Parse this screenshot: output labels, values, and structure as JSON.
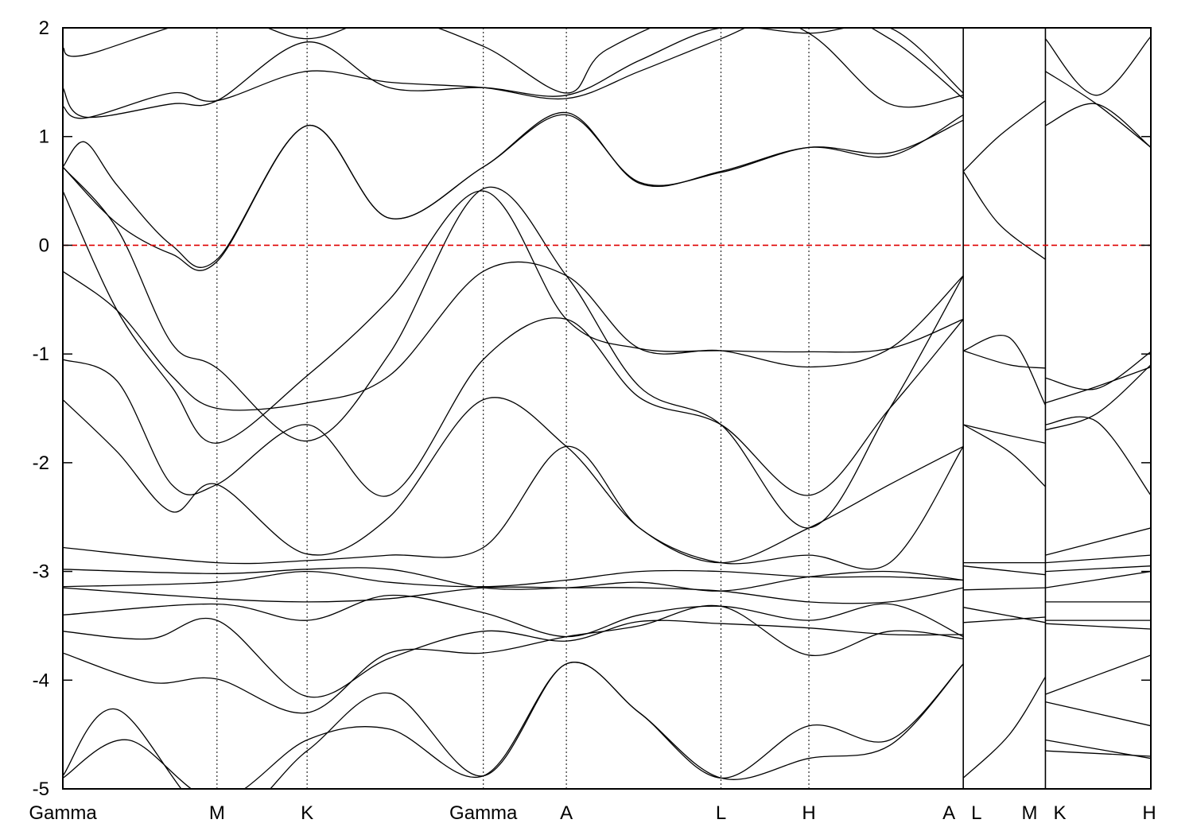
{
  "chart_data": {
    "type": "line",
    "title": "",
    "xlabel": "",
    "ylabel": "",
    "ylim": [
      -5,
      2
    ],
    "yticks": [
      2,
      1,
      0,
      -1,
      -2,
      -3,
      -4,
      -5
    ],
    "ytick_labels": [
      "2",
      "1",
      "0",
      "-1",
      "-2",
      "-3",
      "-4",
      "-5"
    ],
    "xlim": [
      0,
      1
    ],
    "kpoint_labels": [
      "Gamma",
      "M",
      "K",
      "Gamma",
      "A",
      "L",
      "H",
      "A",
      "L",
      "M",
      "K",
      "H"
    ],
    "kpoint_x": [
      0,
      0.1417,
      0.2245,
      0.3865,
      0.4628,
      0.6049,
      0.6857,
      0.8276,
      0.8276,
      0.9031,
      0.9031,
      1.0
    ],
    "vertical_lines_x": [
      0.1417,
      0.2245,
      0.3865,
      0.4628,
      0.6049,
      0.6857,
      0.8276,
      0.9031
    ],
    "segment_breaks_x": [
      0.8276,
      0.9031
    ],
    "fermi_level": 0,
    "colors": {
      "bands": "#000000",
      "fermi_line": "#e00000",
      "frame": "#000000"
    },
    "series": [
      {
        "x": [
          0,
          0.06,
          0.1417,
          0.2245,
          0.3,
          0.3865,
          0.4628,
          0.53,
          0.6049,
          0.6857,
          0.76,
          0.8276
        ],
        "values": [
          -4.9,
          -4.55,
          -5.1,
          -4.55,
          -4.45,
          -4.88,
          -3.85,
          -4.3,
          -4.9,
          -4.72,
          -4.6,
          -3.85
        ]
      },
      {
        "x": [
          0,
          0.05,
          0.1417,
          0.2245,
          0.3,
          0.3865,
          0.4628,
          0.53,
          0.6049,
          0.6857,
          0.76,
          0.8276
        ],
        "values": [
          -4.88,
          -4.27,
          -5.3,
          -4.65,
          -4.12,
          -4.88,
          -3.85,
          -4.3,
          -4.9,
          -4.42,
          -4.55,
          -3.85
        ]
      },
      {
        "x": [
          0,
          0.08,
          0.1417,
          0.2245,
          0.3,
          0.3865,
          0.4628,
          0.53,
          0.6049,
          0.6857,
          0.76,
          0.8276
        ],
        "values": [
          -3.75,
          -4.02,
          -3.99,
          -4.3,
          -3.75,
          -3.75,
          -3.6,
          -3.5,
          -3.32,
          -3.77,
          -3.55,
          -3.62
        ]
      },
      {
        "x": [
          0,
          0.08,
          0.1417,
          0.2245,
          0.3,
          0.3865,
          0.4628,
          0.53,
          0.6049,
          0.6857,
          0.76,
          0.8276
        ],
        "values": [
          -3.55,
          -3.62,
          -3.45,
          -4.15,
          -3.8,
          -3.55,
          -3.64,
          -3.46,
          -3.48,
          -3.52,
          -3.58,
          -3.58
        ]
      },
      {
        "x": [
          0,
          0.1417,
          0.2245,
          0.3,
          0.3865,
          0.4628,
          0.53,
          0.6049,
          0.6857,
          0.76,
          0.8276
        ],
        "values": [
          -3.4,
          -3.3,
          -3.45,
          -3.22,
          -3.38,
          -3.6,
          -3.4,
          -3.32,
          -3.45,
          -3.3,
          -3.6
        ]
      },
      {
        "x": [
          0,
          0.1417,
          0.2245,
          0.3,
          0.3865,
          0.4628,
          0.53,
          0.6049,
          0.6857,
          0.76,
          0.8276
        ],
        "values": [
          -3.15,
          -3.25,
          -3.28,
          -3.25,
          -3.15,
          -3.15,
          -3.15,
          -3.18,
          -3.28,
          -3.28,
          -3.15
        ]
      },
      {
        "x": [
          0,
          0.1417,
          0.2245,
          0.3,
          0.3865,
          0.4628,
          0.53,
          0.6049,
          0.6857,
          0.76,
          0.8276
        ],
        "values": [
          -3.14,
          -3.1,
          -3.0,
          -3.1,
          -3.14,
          -3.08,
          -3.0,
          -3.0,
          -3.05,
          -3.05,
          -3.08
        ]
      },
      {
        "x": [
          0,
          0.1417,
          0.2245,
          0.3,
          0.3865,
          0.4628,
          0.53,
          0.6049,
          0.6857,
          0.76,
          0.8276
        ],
        "values": [
          -2.98,
          -3.02,
          -2.98,
          -2.98,
          -3.15,
          -3.15,
          -3.1,
          -3.18,
          -3.05,
          -3.0,
          -3.08
        ]
      },
      {
        "x": [
          0,
          0.1417,
          0.2245,
          0.3,
          0.3865,
          0.4628,
          0.53,
          0.6049,
          0.6857,
          0.76,
          0.8276
        ],
        "values": [
          -2.78,
          -2.92,
          -2.9,
          -2.85,
          -2.78,
          -1.85,
          -2.6,
          -2.92,
          -2.85,
          -2.92,
          -1.85
        ]
      },
      {
        "x": [
          0,
          0.05,
          0.1,
          0.1417,
          0.2245,
          0.3,
          0.3865,
          0.4628,
          0.53,
          0.6049,
          0.6857,
          0.76,
          0.8276
        ],
        "values": [
          -1.42,
          -1.9,
          -2.45,
          -2.2,
          -2.84,
          -2.5,
          -1.42,
          -1.85,
          -2.6,
          -2.92,
          -2.6,
          -2.2,
          -1.85
        ]
      },
      {
        "x": [
          0,
          0.05,
          0.1,
          0.1417,
          0.2245,
          0.3,
          0.3865,
          0.4628,
          0.53,
          0.6049,
          0.6857,
          0.76,
          0.8276
        ],
        "values": [
          -1.05,
          -1.25,
          -2.2,
          -2.2,
          -1.65,
          -2.3,
          -1.05,
          -0.68,
          -1.4,
          -1.65,
          -2.3,
          -1.5,
          -0.68
        ]
      },
      {
        "x": [
          0,
          0.05,
          0.1,
          0.1417,
          0.2245,
          0.3,
          0.3865,
          0.4628,
          0.53,
          0.6049,
          0.6857,
          0.76,
          0.8276
        ],
        "values": [
          -0.24,
          -0.6,
          -1.2,
          -1.5,
          -1.45,
          -1.2,
          -0.24,
          -0.28,
          -0.95,
          -0.97,
          -1.12,
          -0.95,
          -0.28
        ]
      },
      {
        "x": [
          0,
          0.05,
          0.1,
          0.1417,
          0.2245,
          0.3,
          0.3865,
          0.4628,
          0.53,
          0.6049,
          0.6857,
          0.76,
          0.8276
        ],
        "values": [
          0.5,
          -0.6,
          -1.3,
          -1.82,
          -1.2,
          -0.5,
          0.5,
          -0.68,
          -0.95,
          -0.97,
          -0.98,
          -0.95,
          -0.68
        ]
      },
      {
        "x": [
          0,
          0.05,
          0.1,
          0.1417,
          0.2245,
          0.3,
          0.3865,
          0.4628,
          0.53,
          0.6049,
          0.6857,
          0.76,
          0.8276
        ],
        "values": [
          0.72,
          0.15,
          -0.9,
          -1.13,
          -1.8,
          -1.0,
          0.52,
          -0.28,
          -1.3,
          -1.65,
          -2.6,
          -1.5,
          -0.28
        ]
      },
      {
        "x": [
          0,
          0.05,
          0.1,
          0.1417,
          0.2245,
          0.3,
          0.3865,
          0.4628,
          0.53,
          0.6049,
          0.6857,
          0.76,
          0.8276
        ],
        "values": [
          0.72,
          0.2,
          -0.08,
          -0.15,
          1.1,
          0.25,
          0.72,
          1.2,
          0.58,
          0.67,
          0.9,
          0.85,
          1.15
        ]
      },
      {
        "x": [
          0,
          0.02,
          0.05,
          0.1,
          0.1417,
          0.2245,
          0.3,
          0.3865,
          0.4628,
          0.53,
          0.6049,
          0.6857,
          0.76,
          0.8276
        ],
        "values": [
          0.72,
          0.95,
          0.55,
          0.0,
          -0.13,
          1.1,
          0.25,
          0.72,
          1.22,
          0.57,
          0.68,
          0.9,
          0.82,
          1.2
        ]
      },
      {
        "x": [
          0,
          0.02,
          0.1,
          0.1417,
          0.2245,
          0.3,
          0.3865,
          0.4628,
          0.53,
          0.6049,
          0.6857,
          0.76,
          0.8276
        ],
        "values": [
          1.28,
          1.17,
          1.4,
          1.33,
          1.6,
          1.5,
          1.45,
          1.35,
          1.6,
          1.9,
          2.2,
          1.9,
          1.35
        ]
      },
      {
        "x": [
          0,
          0.02,
          0.1,
          0.1417,
          0.2245,
          0.3,
          0.3865,
          0.4628,
          0.53,
          0.6049,
          0.6857,
          0.76,
          0.8276
        ],
        "values": [
          1.45,
          1.18,
          1.3,
          1.33,
          1.87,
          1.45,
          1.45,
          1.38,
          1.7,
          2.0,
          1.95,
          2.0,
          1.4
        ]
      },
      {
        "x": [
          0,
          0.02,
          0.1417,
          0.2245,
          0.3,
          0.3865,
          0.4628,
          0.5,
          0.6049,
          0.6857,
          0.76,
          0.8276
        ],
        "values": [
          1.82,
          1.75,
          2.1,
          1.9,
          2.1,
          1.83,
          1.4,
          1.8,
          2.2,
          1.95,
          1.3,
          1.38
        ]
      },
      {
        "x": [
          0.8276,
          0.86,
          0.9031
        ],
        "values": [
          0.68,
          0.2,
          -0.13
        ]
      },
      {
        "x": [
          0.8276,
          0.86,
          0.9031
        ],
        "values": [
          0.68,
          1.0,
          1.33
        ]
      },
      {
        "x": [
          0.8276,
          0.87,
          0.9031
        ],
        "values": [
          -0.97,
          -1.1,
          -1.13
        ]
      },
      {
        "x": [
          0.8276,
          0.87,
          0.9031
        ],
        "values": [
          -0.97,
          -0.85,
          -1.47
        ]
      },
      {
        "x": [
          0.8276,
          0.87,
          0.9031
        ],
        "values": [
          -1.65,
          -1.75,
          -1.82
        ]
      },
      {
        "x": [
          0.8276,
          0.87,
          0.9031
        ],
        "values": [
          -1.65,
          -1.9,
          -2.22
        ]
      },
      {
        "x": [
          0.8276,
          0.9031
        ],
        "values": [
          -2.92,
          -2.92
        ]
      },
      {
        "x": [
          0.8276,
          0.9031
        ],
        "values": [
          -2.95,
          -3.03
        ]
      },
      {
        "x": [
          0.8276,
          0.9031
        ],
        "values": [
          -3.17,
          -3.15
        ]
      },
      {
        "x": [
          0.8276,
          0.9031
        ],
        "values": [
          -3.33,
          -3.47
        ]
      },
      {
        "x": [
          0.8276,
          0.9031
        ],
        "values": [
          -3.47,
          -3.42
        ]
      },
      {
        "x": [
          0.8276,
          0.87,
          0.9031
        ],
        "values": [
          -4.9,
          -4.5,
          -3.97
        ]
      },
      {
        "x": [
          0.9031,
          0.95,
          1.0
        ],
        "values": [
          1.1,
          1.3,
          0.9
        ]
      },
      {
        "x": [
          0.9031,
          0.95,
          1.0
        ],
        "values": [
          1.6,
          1.3,
          0.9
        ]
      },
      {
        "x": [
          0.9031,
          0.95,
          1.0
        ],
        "values": [
          1.9,
          1.38,
          1.92
        ]
      },
      {
        "x": [
          0.9031,
          0.95,
          1.0
        ],
        "values": [
          -1.22,
          -1.32,
          -0.98
        ]
      },
      {
        "x": [
          0.9031,
          0.95,
          1.0
        ],
        "values": [
          -1.45,
          -1.3,
          -1.12
        ]
      },
      {
        "x": [
          0.9031,
          0.95,
          1.0
        ],
        "values": [
          -1.65,
          -1.62,
          -2.3
        ]
      },
      {
        "x": [
          0.9031,
          0.95,
          1.0
        ],
        "values": [
          -1.7,
          -1.55,
          -1.1
        ]
      },
      {
        "x": [
          0.9031,
          1.0
        ],
        "values": [
          -2.85,
          -2.6
        ]
      },
      {
        "x": [
          0.9031,
          1.0
        ],
        "values": [
          -2.92,
          -2.85
        ]
      },
      {
        "x": [
          0.9031,
          1.0
        ],
        "values": [
          -3.0,
          -2.95
        ]
      },
      {
        "x": [
          0.9031,
          1.0
        ],
        "values": [
          -3.15,
          -3.0
        ]
      },
      {
        "x": [
          0.9031,
          1.0
        ],
        "values": [
          -3.28,
          -3.28
        ]
      },
      {
        "x": [
          0.9031,
          1.0
        ],
        "values": [
          -3.45,
          -3.45
        ]
      },
      {
        "x": [
          0.9031,
          1.0
        ],
        "values": [
          -3.48,
          -3.53
        ]
      },
      {
        "x": [
          0.9031,
          1.0
        ],
        "values": [
          -4.13,
          -3.77
        ]
      },
      {
        "x": [
          0.9031,
          1.0
        ],
        "values": [
          -4.2,
          -4.42
        ]
      },
      {
        "x": [
          0.9031,
          1.0
        ],
        "values": [
          -4.55,
          -4.72
        ]
      },
      {
        "x": [
          0.9031,
          1.0
        ],
        "values": [
          -4.65,
          -4.7
        ]
      }
    ]
  }
}
